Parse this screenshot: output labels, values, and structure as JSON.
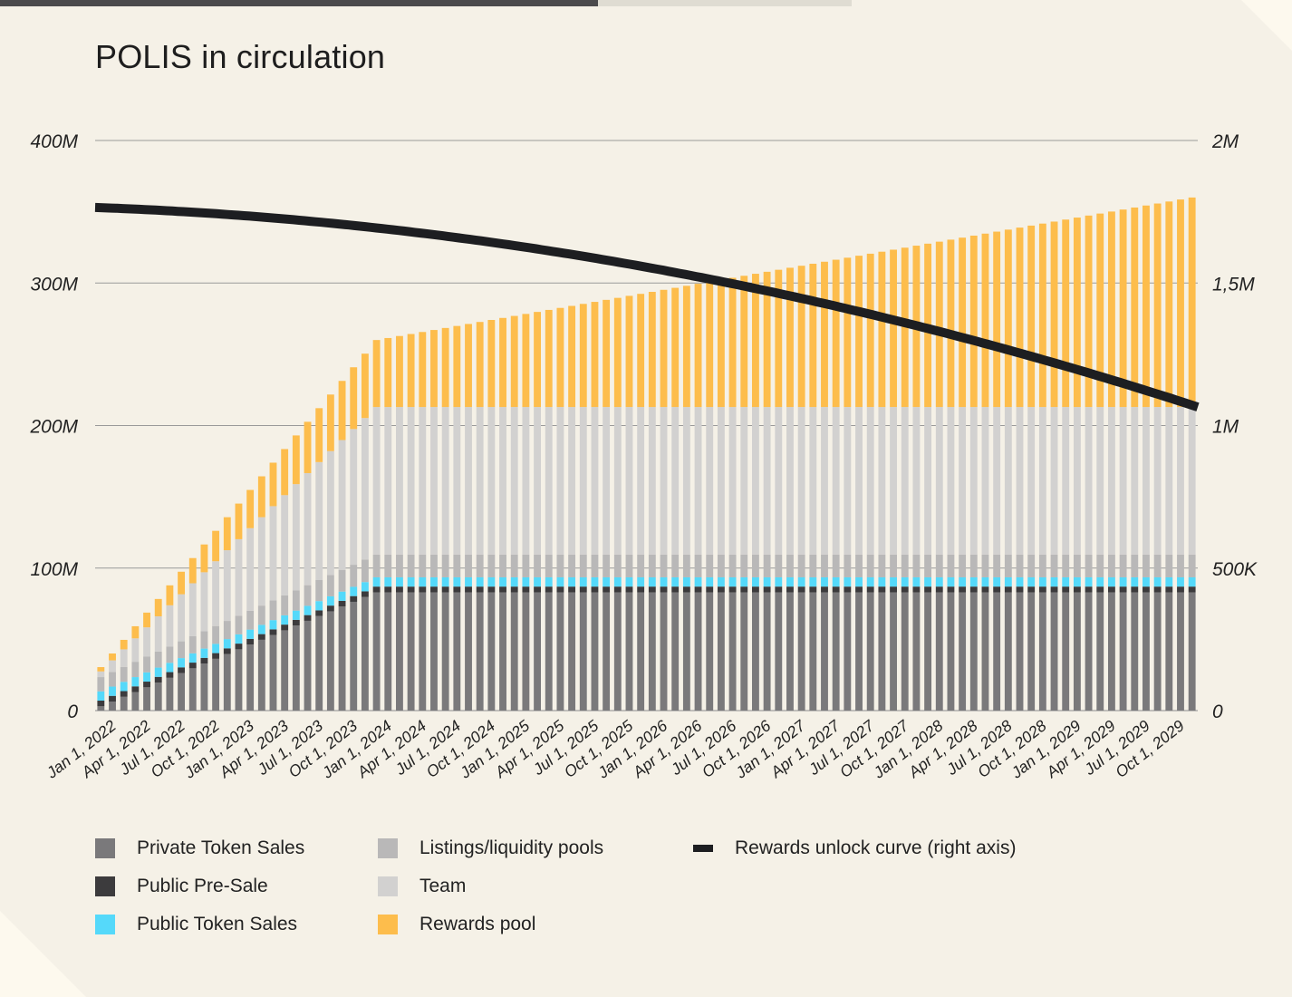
{
  "title": "POLIS in circulation",
  "colors": {
    "background": "#f5f1e7",
    "private_token_sales": "#7a797b",
    "public_pre_sale": "#3c3b3d",
    "public_token_sales": "#55d9fa",
    "listings_liquidity_pools": "#b9b8b8",
    "team": "#d2d1d0",
    "rewards_pool": "#fdbd4c",
    "rewards_unlock_curve": "#1d1e21",
    "gridline": "#9a9a9a"
  },
  "legend": [
    {
      "key": "private_token_sales",
      "label": "Private Token Sales",
      "type": "square",
      "icon": "square-swatch"
    },
    {
      "key": "public_pre_sale",
      "label": "Public Pre-Sale",
      "type": "square",
      "icon": "square-swatch"
    },
    {
      "key": "public_token_sales",
      "label": "Public Token Sales",
      "type": "square",
      "icon": "square-swatch"
    },
    {
      "key": "listings_liquidity_pools",
      "label": "Listings/liquidity pools",
      "type": "square",
      "icon": "square-swatch"
    },
    {
      "key": "team",
      "label": "Team",
      "type": "square",
      "icon": "square-swatch"
    },
    {
      "key": "rewards_pool",
      "label": "Rewards pool",
      "type": "square",
      "icon": "square-swatch"
    },
    {
      "key": "rewards_unlock_curve",
      "label": "Rewards unlock curve (right axis)",
      "type": "line",
      "icon": "line-swatch"
    }
  ],
  "chart_data": {
    "type": "bar",
    "stacked": true,
    "title": "POLIS in circulation",
    "x_start": "2022-01-01",
    "x_end": "2029-12-01",
    "x_step": "1 month",
    "x_tick_labels": [
      "Jan 1, 2022",
      "Apr 1, 2022",
      "Jul 1, 2022",
      "Oct 1, 2022",
      "Jan 1, 2023",
      "Apr 1, 2023",
      "Jul 1, 2023",
      "Oct 1, 2023",
      "Jan 1, 2024",
      "Apr 1, 2024",
      "Jul 1, 2024",
      "Oct 1, 2024",
      "Jan 1, 2025",
      "Apr 1, 2025",
      "Jul 1, 2025",
      "Oct 1, 2025",
      "Jan 1, 2026",
      "Apr 1, 2026",
      "Jul 1, 2026",
      "Oct 1, 2026",
      "Jan 1, 2027",
      "Apr 1, 2027",
      "Jul 1, 2027",
      "Oct 1, 2027",
      "Jan 1, 2028",
      "Apr 1, 2028",
      "Jul 1, 2028",
      "Oct 1, 2028",
      "Jan 1, 2029",
      "Apr 1, 2029",
      "Jul 1, 2029",
      "Oct 1, 2029"
    ],
    "y_left": {
      "ylim": [
        0,
        400
      ],
      "unit": "M",
      "ticks": [
        0,
        100,
        200,
        300,
        400
      ],
      "tick_labels": [
        "0",
        "100M",
        "200M",
        "300M",
        "400M"
      ]
    },
    "y_right": {
      "ylim": [
        0,
        2000000
      ],
      "ticks": [
        0,
        500000,
        1000000,
        1500000,
        2000000
      ],
      "tick_labels": [
        "0",
        "500K",
        "1M",
        "1,5M",
        "2M"
      ]
    },
    "grid": true,
    "legend_position": "bottom",
    "series_model": {
      "Private Token Sales": {
        "axis": "left",
        "shape": "linear ramp until Jan 1, 2024, then constant",
        "start": 3,
        "plateau": 83,
        "ramp_months": 24
      },
      "Public Pre-Sale": {
        "axis": "left",
        "shape": "constant",
        "value": 4
      },
      "Public Token Sales": {
        "axis": "left",
        "shape": "constant",
        "value": 6.5
      },
      "Listings/liquidity pools": {
        "axis": "left",
        "shape": "linear ramp until Jan 1, 2024, then constant",
        "start": 10,
        "plateau": 16,
        "ramp_months": 24
      },
      "Team": {
        "axis": "left",
        "shape": "linear ramp until Jan 1, 2024, then constant",
        "start": 4,
        "plateau": 103.5,
        "ramp_months": 24
      },
      "Rewards pool": {
        "axis": "left",
        "shape": "linear ramp until Jan 1, 2024, then slower linear growth",
        "start": 3,
        "at_ramp_end": 47,
        "end": 147,
        "ramp_months": 24
      },
      "Rewards unlock curve (right axis)": {
        "axis": "right",
        "shape": "smooth decline",
        "start": 1765000,
        "mid_2026": 1505000,
        "end": 1065000
      }
    }
  }
}
